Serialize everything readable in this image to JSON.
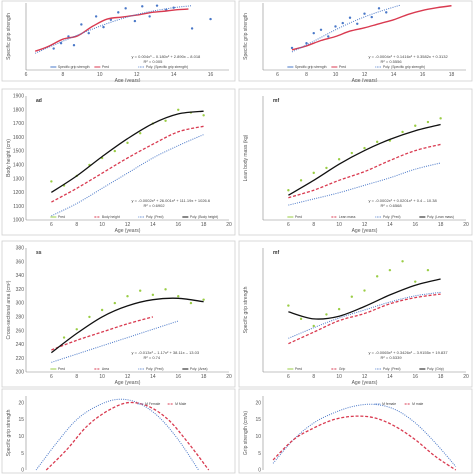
{
  "chart_data": [
    {
      "type": "scatter",
      "panel_letter": "",
      "xlabel": "Age (years)",
      "ylabel": "Specific grip strength",
      "xticks": [
        "6",
        "8",
        "10",
        "12",
        "14",
        "16"
      ],
      "yticks": [],
      "xlim": [
        6,
        17
      ],
      "ylim": [
        0,
        10
      ],
      "equation": "y = 0.004x³ – 0.180x² + 2.890x – 8.018",
      "r2": "R² = 0.005",
      "series": [
        {
          "name": "Specific grip strength",
          "kind": "points",
          "color": "#4a78c8",
          "x": [
            7.5,
            7.9,
            8.3,
            8.6,
            9.0,
            9.4,
            9.8,
            10.2,
            10.6,
            11.0,
            11.4,
            11.9,
            12.3,
            12.7,
            13.1,
            13.6,
            14.0,
            15.0,
            16.0
          ],
          "y": [
            3.2,
            4.0,
            5.0,
            3.7,
            6.8,
            5.5,
            8.0,
            6.4,
            7.5,
            8.6,
            9.2,
            7.3,
            9.5,
            8.0,
            9.6,
            9.0,
            9.3,
            6.2,
            7.6
          ]
        },
        {
          "name": "Pred",
          "kind": "line",
          "color": "#d93a50",
          "x": [
            6.5,
            7.2,
            8.0,
            8.8,
            9.6,
            10.4,
            11.2,
            12.0,
            12.8,
            13.6,
            14.2,
            14.8
          ],
          "y": [
            2.8,
            3.5,
            4.6,
            5.1,
            6.5,
            7.6,
            7.9,
            8.2,
            8.6,
            8.8,
            9.0,
            9.1
          ]
        },
        {
          "name": "Poly. (Specific grip strength)",
          "kind": "dotted",
          "color": "#4a78c8",
          "x": [
            6.5,
            8.0,
            9.5,
            11.0,
            12.5,
            14.0,
            15.0
          ],
          "y": [
            2.5,
            4.3,
            6.0,
            7.5,
            8.6,
            9.3,
            9.6
          ]
        }
      ]
    },
    {
      "type": "scatter",
      "panel_letter": "",
      "xlabel": "Age (years)",
      "ylabel": "Specific grip strength",
      "xticks": [
        "6",
        "8",
        "10",
        "12",
        "14",
        "16",
        "18"
      ],
      "yticks": [],
      "xlim": [
        5,
        19
      ],
      "ylim": [
        0,
        10
      ],
      "equation": "y = -0.0004x³ + 0.1416x² + 0.3582x + 0.3132",
      "r2": "R² = 0.5556",
      "series": [
        {
          "name": "Specific grip strength",
          "kind": "points",
          "color": "#4a78c8",
          "x": [
            7.0,
            8.0,
            8.5,
            9.0,
            9.5,
            10.0,
            10.5,
            11.0,
            11.5,
            12.0,
            12.5,
            13.0,
            13.5
          ],
          "y": [
            3.3,
            4.0,
            5.5,
            6.0,
            5.0,
            6.5,
            7.0,
            7.8,
            6.9,
            8.4,
            7.9,
            9.2,
            8.6
          ]
        },
        {
          "name": "Pred",
          "kind": "line",
          "color": "#d93a50",
          "x": [
            7.0,
            8.0,
            9.0,
            10.0,
            11.0,
            12.0,
            13.0,
            14.0,
            15.0,
            16.0,
            17.0,
            18.0
          ],
          "y": [
            3.0,
            3.6,
            4.4,
            5.0,
            5.8,
            6.3,
            6.9,
            7.5,
            8.3,
            8.9,
            9.3,
            9.6
          ]
        },
        {
          "name": "Poly. (Specific grip strength)",
          "kind": "dotted",
          "color": "#4a78c8",
          "x": [
            7.0,
            8.5,
            10.0,
            11.5,
            13.0,
            14.5
          ],
          "y": [
            2.7,
            4.3,
            6.0,
            7.5,
            8.7,
            9.7
          ]
        }
      ]
    },
    {
      "type": "scatter",
      "panel_letter": "ad",
      "xlabel": "Age (years)",
      "ylabel": "Body height (cm)",
      "xticks": [
        "6",
        "8",
        "10",
        "12",
        "14",
        "16",
        "18",
        "20"
      ],
      "yticks": [
        "1000",
        "1100",
        "1200",
        "1300",
        "1400",
        "1500",
        "1600",
        "1700",
        "1800",
        "1900"
      ],
      "xlim": [
        4,
        20
      ],
      "ylim": [
        1000,
        1900
      ],
      "equation": "y = -0.0002x³ + 26.001x² + 111.19x + 1026.6",
      "r2": "R² = 0.6902",
      "series": [
        {
          "name": "Pred",
          "kind": "points",
          "color": "#9acd45",
          "x": [
            6,
            7,
            8,
            9,
            10,
            11,
            12,
            13,
            14,
            15,
            16,
            17,
            18
          ],
          "y": [
            1280,
            1250,
            1320,
            1400,
            1450,
            1500,
            1560,
            1630,
            1700,
            1720,
            1800,
            1780,
            1760
          ]
        },
        {
          "name": "Body height",
          "kind": "dashed",
          "color": "#d93a50",
          "x": [
            6,
            8,
            10,
            12,
            14,
            16,
            18
          ],
          "y": [
            1130,
            1230,
            1340,
            1450,
            1550,
            1640,
            1680
          ]
        },
        {
          "name": "Poly. (Pred)",
          "kind": "dotted",
          "color": "#4a78c8",
          "x": [
            6,
            8,
            10,
            12,
            14,
            16,
            18
          ],
          "y": [
            1030,
            1120,
            1230,
            1340,
            1450,
            1540,
            1620
          ]
        },
        {
          "name": "Poly. (Body height)",
          "kind": "solid",
          "color": "#111111",
          "x": [
            6,
            8,
            10,
            12,
            14,
            16,
            18
          ],
          "y": [
            1200,
            1320,
            1460,
            1590,
            1700,
            1770,
            1790
          ]
        }
      ]
    },
    {
      "type": "scatter",
      "panel_letter": "mf",
      "xlabel": "Age (years)",
      "ylabel": "Lean body mass (kg)",
      "xticks": [
        "6",
        "8",
        "10",
        "12",
        "14",
        "16",
        "18",
        "20"
      ],
      "yticks": [],
      "xlim": [
        4,
        20
      ],
      "ylim": [
        0,
        10
      ],
      "equation": "y = -0.0002x³ + 0.0201x² + 0.4 – 10.38",
      "r2": "R² = 0.6568",
      "series": [
        {
          "name": "Pred",
          "kind": "points",
          "color": "#9acd45",
          "x": [
            6,
            7,
            8,
            9,
            10,
            11,
            12,
            13,
            14,
            15,
            16,
            17,
            18
          ],
          "y": [
            2.4,
            3.2,
            3.8,
            4.2,
            4.9,
            5.4,
            5.8,
            6.3,
            6.4,
            7.1,
            7.6,
            7.9,
            8.2
          ]
        },
        {
          "name": "Lean mass",
          "kind": "dashed",
          "color": "#d93a50",
          "x": [
            6,
            8,
            10,
            12,
            14,
            16,
            18
          ],
          "y": [
            1.8,
            2.4,
            3.2,
            3.9,
            4.8,
            5.6,
            6.1
          ]
        },
        {
          "name": "Poly. (Pred)",
          "kind": "dotted",
          "color": "#4a78c8",
          "x": [
            6,
            8,
            10,
            12,
            14,
            16,
            18
          ],
          "y": [
            1.2,
            1.7,
            2.2,
            2.8,
            3.4,
            4.1,
            4.6
          ]
        },
        {
          "name": "Poly. (Lean mass)",
          "kind": "solid",
          "color": "#111111",
          "x": [
            6,
            8,
            10,
            12,
            14,
            16,
            18
          ],
          "y": [
            2.0,
            3.2,
            4.5,
            5.6,
            6.5,
            7.2,
            7.7
          ]
        }
      ]
    },
    {
      "type": "scatter",
      "panel_letter": "ss",
      "xlabel": "Age (years)",
      "ylabel": "Cross-sectional area (cm²)",
      "xticks": [
        "6",
        "8",
        "10",
        "12",
        "14",
        "16",
        "18",
        "20"
      ],
      "yticks": [
        "200",
        "220",
        "240",
        "260",
        "280",
        "300",
        "320",
        "340",
        "360",
        "380"
      ],
      "xlim": [
        4,
        20
      ],
      "ylim": [
        200,
        380
      ],
      "equation": "y = -0.013x³ – 1.17x² + 38.11x – 13.03",
      "r2": "R² = 0.74",
      "series": [
        {
          "name": "Pred",
          "kind": "points",
          "color": "#9acd45",
          "x": [
            7,
            8,
            9,
            10,
            11,
            12,
            13,
            14,
            15,
            16,
            17,
            18
          ],
          "y": [
            250,
            262,
            280,
            290,
            300,
            310,
            318,
            312,
            320,
            310,
            300,
            305
          ]
        },
        {
          "name": "Area",
          "kind": "dashed",
          "color": "#d93a50",
          "x": [
            6,
            8,
            10,
            12,
            14
          ],
          "y": [
            232,
            246,
            258,
            270,
            280
          ]
        },
        {
          "name": "Poly. (Pred)",
          "kind": "dotted",
          "color": "#4a78c8",
          "x": [
            6,
            8,
            10,
            12,
            14,
            16
          ],
          "y": [
            214,
            226,
            238,
            250,
            262,
            274
          ]
        },
        {
          "name": "Poly. (Area)",
          "kind": "solid",
          "color": "#111111",
          "x": [
            6,
            8,
            10,
            12,
            14,
            16,
            18
          ],
          "y": [
            228,
            256,
            280,
            296,
            305,
            307,
            302
          ]
        }
      ]
    },
    {
      "type": "scatter",
      "panel_letter": "mf",
      "xlabel": "Age (years)",
      "ylabel": "Specific grip strength",
      "xticks": [
        "6",
        "8",
        "10",
        "12",
        "14",
        "16",
        "18",
        "20"
      ],
      "yticks": [],
      "xlim": [
        4,
        20
      ],
      "ylim": [
        0,
        14
      ],
      "equation": "y = -0.0065x³ + 0.3426x² – 3.9155x + 19.837",
      "r2": "R² = 0.5339",
      "series": [
        {
          "name": "Pred",
          "kind": "points",
          "color": "#9acd45",
          "x": [
            6,
            7,
            8,
            9,
            10,
            11,
            12,
            13,
            14,
            15,
            16,
            17
          ],
          "y": [
            7.5,
            6.0,
            5.2,
            6.5,
            7.1,
            8.5,
            9.2,
            10.8,
            11.5,
            12.5,
            10.2,
            11.5
          ]
        },
        {
          "name": "Grip",
          "kind": "dashed",
          "color": "#d93a50",
          "x": [
            6,
            8,
            10,
            12,
            14,
            16,
            18
          ],
          "y": [
            3.2,
            4.5,
            5.8,
            6.6,
            7.7,
            8.4,
            8.8
          ]
        },
        {
          "name": "Poly. (Pred)",
          "kind": "dotted",
          "color": "#4a78c8",
          "x": [
            6,
            8,
            10,
            12,
            14,
            16,
            18
          ],
          "y": [
            3.8,
            5.0,
            6.1,
            7.0,
            7.9,
            8.6,
            9.0
          ]
        },
        {
          "name": "Poly. (Grip)",
          "kind": "solid",
          "color": "#111111",
          "x": [
            6,
            8,
            10,
            12,
            14,
            16,
            18
          ],
          "y": [
            6.8,
            6.0,
            6.3,
            7.4,
            8.7,
            9.8,
            10.5
          ]
        }
      ]
    },
    {
      "type": "line",
      "panel_letter": "",
      "xlabel": "",
      "ylabel": "Specific grip strength",
      "xticks": [],
      "yticks": [
        "20",
        "15",
        "10",
        "5",
        "0"
      ],
      "xlim": [
        0,
        10
      ],
      "ylim": [
        0,
        22
      ],
      "equation": "",
      "r2": "",
      "series": [
        {
          "name": "M Female",
          "kind": "dotted",
          "color": "#4a78c8",
          "x": [
            0.5,
            1.5,
            2.5,
            3.5,
            4.5,
            5.5,
            6.5,
            7.5,
            8.5
          ],
          "y": [
            0,
            8,
            15,
            19,
            21,
            20,
            16,
            9,
            0
          ]
        },
        {
          "name": "M Male",
          "kind": "dashed",
          "color": "#d93a50",
          "x": [
            1.0,
            2.0,
            3.0,
            4.0,
            5.0,
            6.0,
            7.0,
            8.0,
            9.0
          ],
          "y": [
            0,
            6,
            13,
            17.5,
            20,
            19,
            15,
            8,
            0
          ]
        }
      ]
    },
    {
      "type": "line",
      "panel_letter": "",
      "xlabel": "",
      "ylabel": "Grip strength (cm/s)",
      "xticks": [],
      "yticks": [
        "20",
        "15",
        "10",
        "5",
        "0"
      ],
      "xlim": [
        0,
        10
      ],
      "ylim": [
        0,
        22
      ],
      "equation": "",
      "r2": "",
      "series": [
        {
          "name": "M female",
          "kind": "dotted",
          "color": "#4a78c8",
          "x": [
            0.5,
            1.5,
            2.5,
            3.5,
            4.5,
            5.5,
            6.5,
            7.5,
            8.5,
            9.5
          ],
          "y": [
            2,
            9,
            14,
            17,
            19,
            19.5,
            18,
            14,
            8,
            1
          ]
        },
        {
          "name": "M male",
          "kind": "dashed",
          "color": "#d93a50",
          "x": [
            0.5,
            1.5,
            2.5,
            3.5,
            4.5,
            5.5,
            6.5,
            7.5,
            8.5,
            9.5
          ],
          "y": [
            3,
            9,
            12.5,
            15,
            16,
            15.5,
            13,
            9,
            4,
            0
          ]
        }
      ]
    }
  ]
}
